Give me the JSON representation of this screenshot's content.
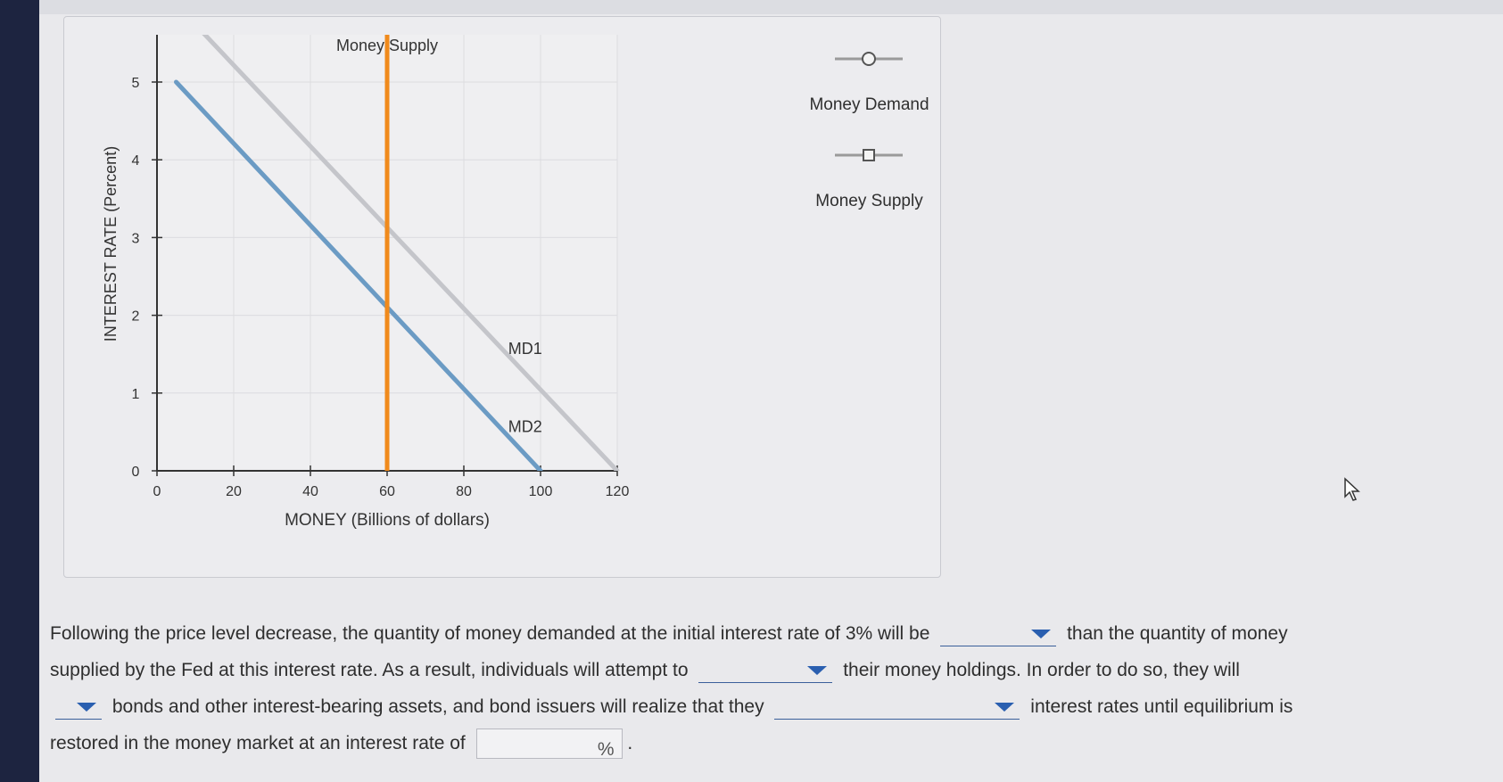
{
  "chart_data": {
    "type": "line",
    "xlabel": "MONEY (Billions of dollars)",
    "ylabel": "INTEREST RATE (Percent)",
    "xlim": [
      0,
      120
    ],
    "ylim": [
      0,
      5
    ],
    "x_ticks": [
      "0",
      "20",
      "40",
      "60",
      "80",
      "100",
      "120"
    ],
    "y_ticks": [
      "0",
      "1",
      "2",
      "3",
      "4",
      "5"
    ],
    "x_tick_values": [
      0,
      20,
      40,
      60,
      80,
      100,
      120
    ],
    "y_tick_values": [
      0,
      1,
      2,
      3,
      4,
      5
    ],
    "grid": true,
    "series": [
      {
        "name": "Money Supply",
        "x": [
          60,
          60
        ],
        "y": [
          0,
          6
        ],
        "color": "#f08a1c"
      },
      {
        "name": "MD1",
        "x": [
          5,
          120
        ],
        "y": [
          6,
          0
        ],
        "color": "#c4c5ca"
      },
      {
        "name": "MD2",
        "x": [
          5,
          100
        ],
        "y": [
          5,
          0
        ],
        "color": "#6b9bc4"
      }
    ]
  },
  "legend": {
    "items": [
      {
        "label": "Money Demand",
        "marker": "circle-marker-icon"
      },
      {
        "label": "Money Supply",
        "marker": "square-marker-icon"
      }
    ]
  },
  "question": {
    "line1_a": "Following the price level decrease, the quantity of money demanded at the initial interest rate of 3% will be",
    "line1_b": "than the quantity of money",
    "line2_a": "supplied by the Fed at this interest rate. As a result, individuals will attempt to",
    "line2_b": "their money holdings. In order to do so, they will",
    "line3_a": "bonds and other interest-bearing assets, and bond issuers will realize that they",
    "line3_b": "interest rates until equilibrium is",
    "line4_a": "restored in the money market at an interest rate of",
    "percent_symbol": "%",
    "period": "."
  }
}
